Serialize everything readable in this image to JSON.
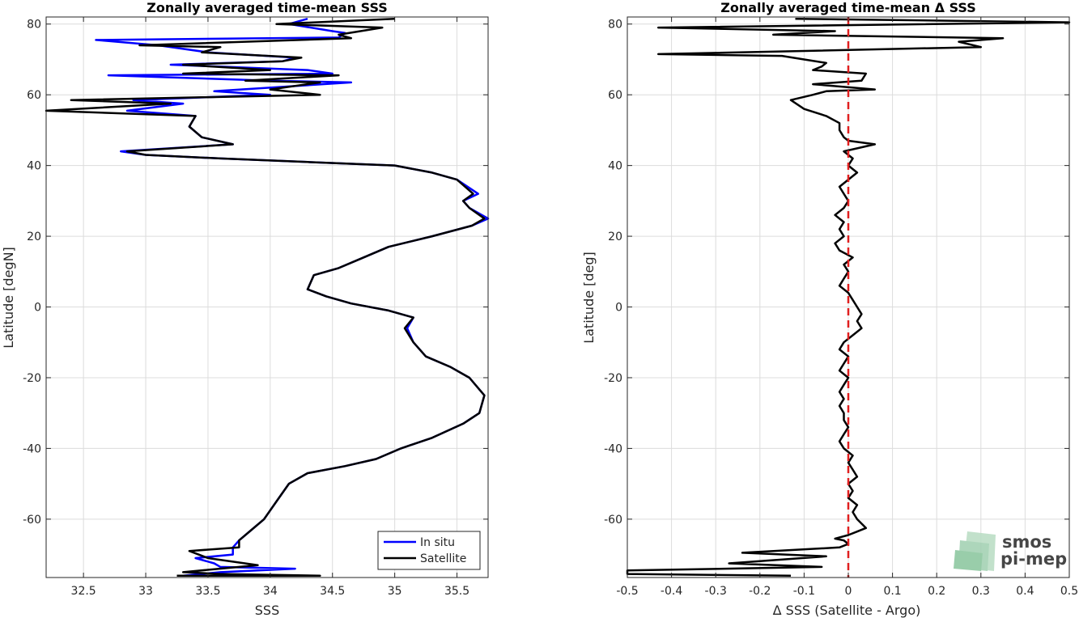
{
  "colors": {
    "in_situ": "#0000ff",
    "satellite": "#000000",
    "zero_line": "#e01f1f",
    "grid": "#dcdcdc",
    "logo": "#7fbf95"
  },
  "logo": {
    "line1": "smos",
    "line2": "pi-mep"
  },
  "chart_data": [
    {
      "type": "line",
      "title": "Zonally averaged time-mean SSS",
      "xlabel": "SSS",
      "ylabel": "Latitude [degN]",
      "xlim": [
        32.2,
        35.75
      ],
      "ylim": [
        -76.5,
        82
      ],
      "xticks": [
        32.5,
        33,
        33.5,
        34,
        34.5,
        35,
        35.5
      ],
      "xticklabels": [
        "32.5",
        "33",
        "33.5",
        "34",
        "34.5",
        "35",
        "35.5"
      ],
      "yticks": [
        -60,
        -40,
        -20,
        0,
        20,
        40,
        60,
        80
      ],
      "yticklabels": [
        "-60",
        "-40",
        "-20",
        "0",
        "20",
        "40",
        "60",
        "80"
      ],
      "grid": true,
      "legend_position": "bottom-right",
      "series": [
        {
          "name": "In situ",
          "color": "#0000ff",
          "points": [
            [
              33.3,
              -76
            ],
            [
              33.6,
              -75
            ],
            [
              34.2,
              -74
            ],
            [
              33.6,
              -73.5
            ],
            [
              33.55,
              -72.5
            ],
            [
              33.4,
              -71
            ],
            [
              33.7,
              -70
            ],
            [
              33.7,
              -68
            ],
            [
              33.75,
              -66
            ],
            [
              33.85,
              -63
            ],
            [
              33.95,
              -60
            ],
            [
              34.05,
              -55
            ],
            [
              34.15,
              -50
            ],
            [
              34.3,
              -47
            ],
            [
              34.6,
              -45
            ],
            [
              34.85,
              -43
            ],
            [
              35.05,
              -40
            ],
            [
              35.3,
              -37
            ],
            [
              35.55,
              -33
            ],
            [
              35.68,
              -30
            ],
            [
              35.72,
              -25
            ],
            [
              35.6,
              -20
            ],
            [
              35.45,
              -17
            ],
            [
              35.25,
              -14
            ],
            [
              35.15,
              -10
            ],
            [
              35.1,
              -6
            ],
            [
              35.15,
              -3
            ],
            [
              34.95,
              -1
            ],
            [
              34.65,
              1
            ],
            [
              34.45,
              3
            ],
            [
              34.3,
              5
            ],
            [
              34.35,
              9
            ],
            [
              34.55,
              11
            ],
            [
              34.75,
              14
            ],
            [
              34.95,
              17
            ],
            [
              35.3,
              20
            ],
            [
              35.62,
              23
            ],
            [
              35.75,
              25
            ],
            [
              35.6,
              28
            ],
            [
              35.55,
              30
            ],
            [
              35.67,
              32
            ],
            [
              35.5,
              36
            ],
            [
              35.3,
              38
            ],
            [
              35.0,
              40
            ],
            [
              34.3,
              41
            ],
            [
              33.6,
              42
            ],
            [
              33.0,
              43
            ],
            [
              32.8,
              44
            ],
            [
              33.7,
              46
            ],
            [
              33.45,
              48
            ],
            [
              33.35,
              51
            ],
            [
              33.4,
              54
            ],
            [
              32.85,
              55.5
            ],
            [
              33.3,
              57.5
            ],
            [
              32.9,
              58.5
            ],
            [
              34.0,
              60
            ],
            [
              33.55,
              61
            ],
            [
              34.65,
              63.5
            ],
            [
              34.0,
              64
            ],
            [
              32.7,
              65.5
            ],
            [
              34.5,
              66
            ],
            [
              34.3,
              67
            ],
            [
              33.2,
              68.5
            ],
            [
              34.1,
              69.5
            ],
            [
              34.2,
              70.5
            ],
            [
              33.5,
              72
            ],
            [
              33.1,
              74
            ],
            [
              32.6,
              75.5
            ],
            [
              34.55,
              76.2
            ],
            [
              34.6,
              77.5
            ],
            [
              34.5,
              78
            ],
            [
              34.15,
              80
            ],
            [
              34.3,
              81.5
            ]
          ]
        },
        {
          "name": "Satellite",
          "color": "#000000",
          "points": [
            [
              33.25,
              -76
            ],
            [
              34.4,
              -76
            ],
            [
              33.6,
              -75.5
            ],
            [
              33.3,
              -75
            ],
            [
              33.9,
              -73
            ],
            [
              33.5,
              -71
            ],
            [
              33.35,
              -69
            ],
            [
              33.75,
              -68
            ],
            [
              33.75,
              -66
            ],
            [
              33.85,
              -63
            ],
            [
              33.95,
              -60
            ],
            [
              34.05,
              -55
            ],
            [
              34.15,
              -50
            ],
            [
              34.3,
              -47
            ],
            [
              34.6,
              -45
            ],
            [
              34.85,
              -43
            ],
            [
              35.05,
              -40
            ],
            [
              35.3,
              -37
            ],
            [
              35.55,
              -33
            ],
            [
              35.68,
              -30
            ],
            [
              35.72,
              -25
            ],
            [
              35.6,
              -20
            ],
            [
              35.45,
              -17
            ],
            [
              35.25,
              -14
            ],
            [
              35.15,
              -10
            ],
            [
              35.08,
              -6
            ],
            [
              35.15,
              -3
            ],
            [
              34.95,
              -1
            ],
            [
              34.65,
              1
            ],
            [
              34.45,
              3
            ],
            [
              34.3,
              5
            ],
            [
              34.35,
              9
            ],
            [
              34.55,
              11
            ],
            [
              34.75,
              14
            ],
            [
              34.95,
              17
            ],
            [
              35.3,
              20
            ],
            [
              35.62,
              23
            ],
            [
              35.72,
              25
            ],
            [
              35.6,
              28
            ],
            [
              35.55,
              30
            ],
            [
              35.63,
              32
            ],
            [
              35.5,
              36
            ],
            [
              35.3,
              38
            ],
            [
              35.0,
              40
            ],
            [
              34.3,
              41
            ],
            [
              33.6,
              42
            ],
            [
              33.0,
              43
            ],
            [
              32.85,
              44
            ],
            [
              33.7,
              46
            ],
            [
              33.45,
              48
            ],
            [
              33.35,
              51
            ],
            [
              33.4,
              54
            ],
            [
              32.2,
              55.5
            ],
            [
              33.2,
              57.5
            ],
            [
              32.4,
              58.5
            ],
            [
              34.4,
              60
            ],
            [
              34.0,
              61.5
            ],
            [
              34.4,
              63.5
            ],
            [
              33.8,
              64
            ],
            [
              34.55,
              65.5
            ],
            [
              33.3,
              66
            ],
            [
              34.0,
              67
            ],
            [
              33.3,
              68.5
            ],
            [
              34.1,
              69.5
            ],
            [
              34.25,
              70.5
            ],
            [
              33.45,
              72
            ],
            [
              33.6,
              73.5
            ],
            [
              32.95,
              74
            ],
            [
              34.65,
              76
            ],
            [
              34.55,
              77
            ],
            [
              34.9,
              79
            ],
            [
              34.05,
              80
            ],
            [
              35.0,
              81.5
            ]
          ]
        }
      ]
    },
    {
      "type": "line",
      "title": "Zonally averaged time-mean Δ SSS",
      "xlabel": "Δ SSS (Satellite - Argo)",
      "ylabel": "Latitude [deg]",
      "xlim": [
        -0.5,
        0.5
      ],
      "ylim": [
        -76.5,
        82
      ],
      "xticks": [
        -0.5,
        -0.4,
        -0.3,
        -0.2,
        -0.1,
        0,
        0.1,
        0.2,
        0.3,
        0.4,
        0.5
      ],
      "xticklabels": [
        "-0.5",
        "-0.4",
        "-0.3",
        "-0.2",
        "-0.1",
        "0",
        "0.1",
        "0.2",
        "0.3",
        "0.4",
        "0.5"
      ],
      "yticks": [
        -60,
        -40,
        -20,
        0,
        20,
        40,
        60,
        80
      ],
      "yticklabels": [
        "-60",
        "-40",
        "-20",
        "0",
        "20",
        "40",
        "60",
        "80"
      ],
      "grid": true,
      "reference_line": {
        "x": 0,
        "style": "dashed",
        "color": "#e01f1f"
      },
      "series": [
        {
          "color": "#000000",
          "points": [
            [
              -0.13,
              -76
            ],
            [
              -0.5,
              -75.5
            ],
            [
              -0.5,
              -74.5
            ],
            [
              -0.06,
              -73.5
            ],
            [
              -0.27,
              -72.5
            ],
            [
              -0.05,
              -70.5
            ],
            [
              -0.24,
              -69.5
            ],
            [
              -0.02,
              -68
            ],
            [
              0.0,
              -67
            ],
            [
              -0.01,
              -66
            ],
            [
              -0.03,
              -65.5
            ],
            [
              0.0,
              -64.5
            ],
            [
              0.02,
              -63.5
            ],
            [
              0.04,
              -62.5
            ],
            [
              0.02,
              -60
            ],
            [
              0.01,
              -58
            ],
            [
              0.02,
              -56
            ],
            [
              0.0,
              -54
            ],
            [
              0.01,
              -52
            ],
            [
              0.0,
              -50
            ],
            [
              0.02,
              -48
            ],
            [
              0.01,
              -46
            ],
            [
              0.0,
              -44
            ],
            [
              0.01,
              -42
            ],
            [
              -0.01,
              -40
            ],
            [
              -0.02,
              -38
            ],
            [
              -0.01,
              -36
            ],
            [
              0.0,
              -34
            ],
            [
              -0.01,
              -32
            ],
            [
              -0.01,
              -30
            ],
            [
              -0.02,
              -28
            ],
            [
              -0.01,
              -26
            ],
            [
              -0.02,
              -24
            ],
            [
              -0.01,
              -22
            ],
            [
              0.0,
              -20
            ],
            [
              -0.02,
              -18
            ],
            [
              -0.01,
              -16
            ],
            [
              0.0,
              -14
            ],
            [
              -0.02,
              -12
            ],
            [
              -0.01,
              -10
            ],
            [
              0.01,
              -8
            ],
            [
              0.03,
              -6
            ],
            [
              0.02,
              -4
            ],
            [
              0.03,
              -2
            ],
            [
              0.02,
              0
            ],
            [
              0.01,
              2
            ],
            [
              0.0,
              4
            ],
            [
              -0.02,
              6
            ],
            [
              -0.01,
              8
            ],
            [
              0.0,
              10
            ],
            [
              -0.01,
              12
            ],
            [
              0.01,
              14
            ],
            [
              -0.02,
              16
            ],
            [
              -0.03,
              18
            ],
            [
              -0.01,
              20
            ],
            [
              -0.02,
              22
            ],
            [
              -0.01,
              24
            ],
            [
              -0.03,
              26
            ],
            [
              -0.01,
              28
            ],
            [
              0.0,
              30
            ],
            [
              -0.01,
              32
            ],
            [
              -0.02,
              34
            ],
            [
              0.0,
              36
            ],
            [
              0.02,
              38
            ],
            [
              0.0,
              40
            ],
            [
              0.01,
              42
            ],
            [
              -0.01,
              44
            ],
            [
              0.06,
              46
            ],
            [
              0.0,
              47
            ],
            [
              -0.01,
              48
            ],
            [
              -0.02,
              50
            ],
            [
              -0.02,
              52
            ],
            [
              -0.05,
              54
            ],
            [
              -0.1,
              56
            ],
            [
              -0.13,
              58.5
            ],
            [
              -0.08,
              60
            ],
            [
              -0.05,
              61
            ],
            [
              0.06,
              61.5
            ],
            [
              -0.08,
              63
            ],
            [
              0.03,
              64
            ],
            [
              0.04,
              66
            ],
            [
              -0.08,
              67
            ],
            [
              -0.06,
              68
            ],
            [
              -0.05,
              69
            ],
            [
              -0.1,
              70
            ],
            [
              -0.15,
              71
            ],
            [
              -0.43,
              71.5
            ],
            [
              0.3,
              73.5
            ],
            [
              0.25,
              75
            ],
            [
              0.35,
              76
            ],
            [
              -0.17,
              77
            ],
            [
              -0.03,
              78
            ],
            [
              -0.43,
              79
            ],
            [
              0.5,
              80.5
            ],
            [
              -0.12,
              81.5
            ]
          ]
        }
      ]
    }
  ],
  "legend": {
    "items": [
      {
        "label": "In situ",
        "color": "#0000ff"
      },
      {
        "label": "Satellite",
        "color": "#000000"
      }
    ]
  }
}
